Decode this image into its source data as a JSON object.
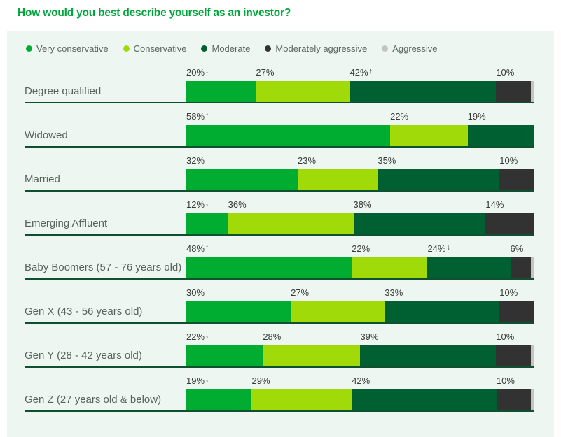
{
  "title": "How would you best describe yourself as an investor?",
  "legend": {
    "items": [
      {
        "label": "Very conservative",
        "color": "#00ad31"
      },
      {
        "label": "Conservative",
        "color": "#a0da09"
      },
      {
        "label": "Moderate",
        "color": "#006032"
      },
      {
        "label": "Moderately aggressive",
        "color": "#323232"
      },
      {
        "label": "Aggressive",
        "color": "#c3c5c3"
      }
    ]
  },
  "style": {
    "accent_green": "#00a63c",
    "underline_green": "#0d5130",
    "panel_bg": "#edf6f1"
  },
  "chart_data": {
    "type": "bar",
    "variant": "horizontal-stacked-100pct",
    "unit": "%",
    "title": "How would you best describe yourself as an investor?",
    "legend_position": "top",
    "series_order": [
      "Very conservative",
      "Conservative",
      "Moderate",
      "Moderately aggressive",
      "Aggressive"
    ],
    "categories": [
      "Degree qualified",
      "Widowed",
      "Married",
      "Emerging Affluent",
      "Baby Boomers (57 - 76 years old)",
      "Gen X (43 - 56 years old)",
      "Gen Y (28 - 42 years old)",
      "Gen Z (27 years old & below)"
    ],
    "rows": [
      {
        "category": "Degree qualified",
        "segments": [
          {
            "series": "Very conservative",
            "value": 20,
            "label": "20%",
            "arrow": "down"
          },
          {
            "series": "Conservative",
            "value": 27,
            "label": "27%",
            "arrow": null
          },
          {
            "series": "Moderate",
            "value": 42,
            "label": "42%",
            "arrow": "up"
          },
          {
            "series": "Moderately aggressive",
            "value": 10,
            "label": "10%",
            "arrow": null
          },
          {
            "series": "Aggressive",
            "value": 1,
            "label": "",
            "arrow": null
          }
        ]
      },
      {
        "category": "Widowed",
        "segments": [
          {
            "series": "Very conservative",
            "value": 58,
            "label": "58%",
            "arrow": "up"
          },
          {
            "series": "Conservative",
            "value": 22,
            "label": "22%",
            "arrow": null
          },
          {
            "series": "Moderate",
            "value": 19,
            "label": "19%",
            "arrow": null
          }
        ]
      },
      {
        "category": "Married",
        "segments": [
          {
            "series": "Very conservative",
            "value": 32,
            "label": "32%",
            "arrow": null
          },
          {
            "series": "Conservative",
            "value": 23,
            "label": "23%",
            "arrow": null
          },
          {
            "series": "Moderate",
            "value": 35,
            "label": "35%",
            "arrow": null
          },
          {
            "series": "Moderately aggressive",
            "value": 10,
            "label": "10%",
            "arrow": null
          }
        ]
      },
      {
        "category": "Emerging Affluent",
        "segments": [
          {
            "series": "Very conservative",
            "value": 12,
            "label": "12%",
            "arrow": "down"
          },
          {
            "series": "Conservative",
            "value": 36,
            "label": "36%",
            "arrow": null
          },
          {
            "series": "Moderate",
            "value": 38,
            "label": "38%",
            "arrow": null
          },
          {
            "series": "Moderately aggressive",
            "value": 14,
            "label": "14%",
            "arrow": null
          }
        ]
      },
      {
        "category": "Baby Boomers (57 - 76 years old)",
        "segments": [
          {
            "series": "Very conservative",
            "value": 48,
            "label": "48%",
            "arrow": "up"
          },
          {
            "series": "Conservative",
            "value": 22,
            "label": "22%",
            "arrow": null
          },
          {
            "series": "Moderate",
            "value": 24,
            "label": "24%",
            "arrow": "down"
          },
          {
            "series": "Moderately aggressive",
            "value": 6,
            "label": "6%",
            "arrow": null
          },
          {
            "series": "Aggressive",
            "value": 1,
            "label": "",
            "arrow": null
          }
        ]
      },
      {
        "category": "Gen X (43 - 56 years old)",
        "segments": [
          {
            "series": "Very conservative",
            "value": 30,
            "label": "30%",
            "arrow": null
          },
          {
            "series": "Conservative",
            "value": 27,
            "label": "27%",
            "arrow": null
          },
          {
            "series": "Moderate",
            "value": 33,
            "label": "33%",
            "arrow": null
          },
          {
            "series": "Moderately aggressive",
            "value": 10,
            "label": "10%",
            "arrow": null
          }
        ]
      },
      {
        "category": "Gen Y (28 - 42 years old)",
        "segments": [
          {
            "series": "Very conservative",
            "value": 22,
            "label": "22%",
            "arrow": "down"
          },
          {
            "series": "Conservative",
            "value": 28,
            "label": "28%",
            "arrow": null
          },
          {
            "series": "Moderate",
            "value": 39,
            "label": "39%",
            "arrow": null
          },
          {
            "series": "Moderately aggressive",
            "value": 10,
            "label": "10%",
            "arrow": null
          },
          {
            "series": "Aggressive",
            "value": 1,
            "label": "",
            "arrow": null
          }
        ]
      },
      {
        "category": "Gen Z (27 years old & below)",
        "segments": [
          {
            "series": "Very conservative",
            "value": 19,
            "label": "19%",
            "arrow": "down"
          },
          {
            "series": "Conservative",
            "value": 29,
            "label": "29%",
            "arrow": null
          },
          {
            "series": "Moderate",
            "value": 42,
            "label": "42%",
            "arrow": null
          },
          {
            "series": "Moderately aggressive",
            "value": 10,
            "label": "10%",
            "arrow": null
          },
          {
            "series": "Aggressive",
            "value": 1,
            "label": "",
            "arrow": null
          }
        ]
      }
    ]
  }
}
